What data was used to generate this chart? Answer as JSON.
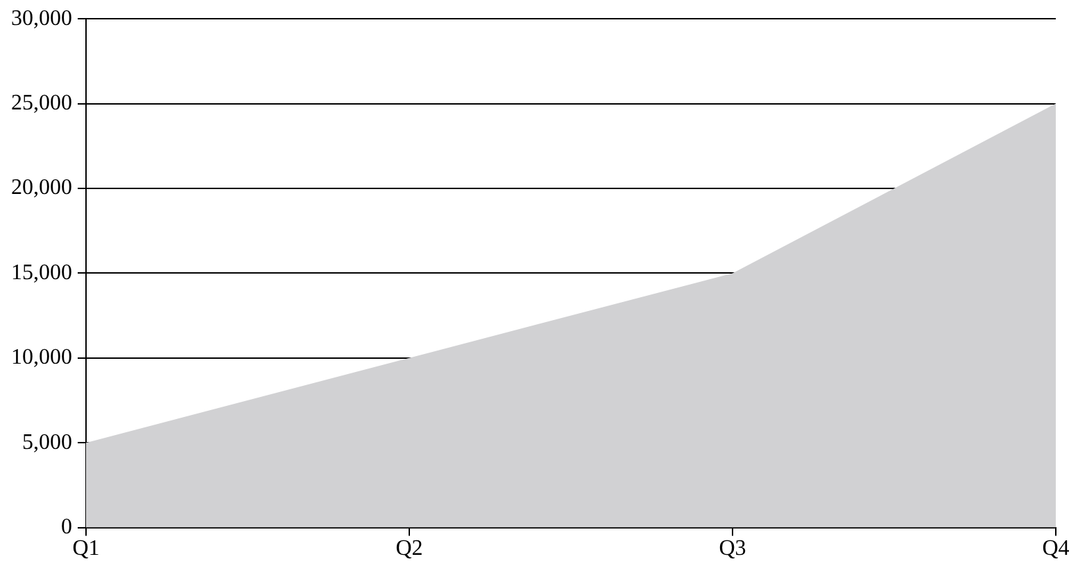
{
  "chart_data": {
    "type": "area",
    "categories": [
      "Q1",
      "Q2",
      "Q3",
      "Q4"
    ],
    "values": [
      5000,
      10000,
      15000,
      25000
    ],
    "color": "#d1d1d3",
    "ylim": [
      0,
      30000
    ],
    "yticks": [
      0,
      {
        "value": 5000,
        "label": "5,000"
      },
      {
        "value": 10000,
        "label": "10,000"
      },
      {
        "value": 15000,
        "label": "15,000"
      },
      {
        "value": 20000,
        "label": "20,000"
      },
      {
        "value": 25000,
        "label": "25,000"
      },
      {
        "value": 30000,
        "label": "30,000"
      }
    ],
    "grid": "y"
  }
}
